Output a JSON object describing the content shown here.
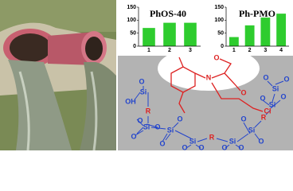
{
  "chart_data": [
    {
      "type": "bar",
      "title": "PhOS-40",
      "categories": [
        "1",
        "2",
        "3"
      ],
      "values": [
        70,
        90,
        90
      ],
      "color": "#2ecc2e",
      "ylim": [
        0,
        150
      ],
      "yticks": [
        0,
        50,
        100,
        150
      ]
    },
    {
      "type": "bar",
      "title": "Ph-PMO",
      "categories": [
        "1",
        "2",
        "3",
        "4"
      ],
      "values": [
        35,
        80,
        110,
        125
      ],
      "color": "#2ecc2e",
      "ylim": [
        0,
        150
      ],
      "yticks": [
        0,
        50,
        100,
        150
      ]
    }
  ],
  "diagram": {
    "labels": [
      "O",
      "Si",
      "OH",
      "R",
      "O",
      "Si",
      "O",
      "O",
      "Si",
      "O",
      "O",
      "Si",
      "O",
      "O",
      "R",
      "Si",
      "O",
      "O",
      "Si",
      "O",
      "O",
      "R",
      "Si",
      "O",
      "O",
      "Si",
      "O",
      "O",
      "N",
      "O",
      "O",
      "Cl"
    ]
  }
}
